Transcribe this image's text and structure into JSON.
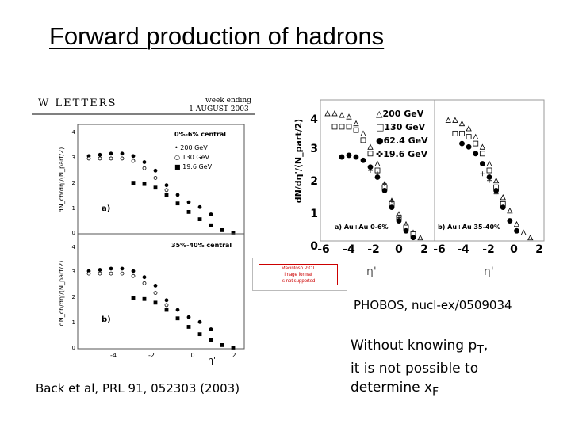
{
  "title": "Forward production of hadrons",
  "left_figure": {
    "header_left": "W LETTERS",
    "header_right_1": "week ending",
    "header_right_2": "1 AUGUST 2003",
    "top_panel": {
      "centrality": "0%-6% central",
      "legend": [
        "• 200 GeV",
        "○ 130 GeV",
        "■ 19.6 GeV"
      ],
      "label": "a)",
      "ylabel": "dN_ch/dη'/(N_part/2)",
      "yticks": [
        "0",
        "1",
        "2",
        "3",
        "4"
      ]
    },
    "bottom_panel": {
      "centrality": "35%-40% central",
      "label": "b)",
      "ylabel": "dN_ch/dη'/(N_part/2)",
      "yticks": [
        "0",
        "1",
        "2",
        "3",
        "4"
      ],
      "xticks": [
        "-4",
        "-2",
        "0",
        "2"
      ],
      "xlabel": "η'"
    },
    "caption": "Back et al, PRL 91, 052303 (2003)"
  },
  "right_figure": {
    "ylabel": "dN/dη'/⟨N_part/2⟩",
    "yticks": [
      "0",
      "1",
      "2",
      "3",
      "4"
    ],
    "legend": [
      "△200 GeV",
      "□130 GeV",
      "●62.4 GeV",
      "✜19.6 GeV"
    ],
    "panel_a": "a) Au+Au 0-6%",
    "panel_b": "b) Au+Au 35-40%",
    "xticks_a": [
      "-6",
      "-4",
      "-2",
      "0",
      "2"
    ],
    "xticks_b": [
      "-6",
      "-4",
      "-2",
      "0",
      "2"
    ],
    "xlabel": "η'",
    "caption": "PHOBOS, nucl-ex/0509034"
  },
  "pict_placeholder": [
    "Macintosh PICT",
    "image format",
    "is not supported"
  ],
  "body_text": {
    "line1_pre": "Without knowing p",
    "line1_sub": "T",
    "line1_post": ",",
    "line2": "it is not possible to",
    "line3_pre": "determine x",
    "line3_sub": "F"
  },
  "chart_data": [
    {
      "type": "scatter",
      "panel": "left-top",
      "series": [
        {
          "name": "200 GeV",
          "x": [
            -4.5,
            -4,
            -3.5,
            -3,
            -2.5,
            -2,
            -1.5,
            -1,
            -0.5,
            0,
            0.5,
            1
          ],
          "y": [
            3.2,
            3.25,
            3.3,
            3.3,
            3.2,
            2.95,
            2.6,
            2.0,
            1.6,
            1.3,
            1.1,
            0.8
          ]
        },
        {
          "name": "130 GeV",
          "x": [
            -4.5,
            -4,
            -3.5,
            -3,
            -2.5,
            -2,
            -1.5,
            -1
          ],
          "y": [
            3.1,
            3.1,
            3.1,
            3.1,
            3.0,
            2.7,
            2.3,
            1.8
          ]
        },
        {
          "name": "19.6 GeV",
          "x": [
            -2.5,
            -2,
            -1.5,
            -1,
            -0.5,
            0,
            0.5,
            1,
            1.5,
            2
          ],
          "y": [
            2.1,
            2.05,
            1.9,
            1.6,
            1.25,
            0.9,
            0.6,
            0.35,
            0.15,
            0.05
          ]
        }
      ],
      "ylim": [
        0,
        4.5
      ],
      "xlim": [
        -5,
        2.5
      ]
    },
    {
      "type": "scatter",
      "panel": "right-a",
      "series": [
        {
          "name": "200 GeV",
          "x": [
            -5.5,
            -5,
            -4.5,
            -4,
            -3.5,
            -3,
            -2.5,
            -2,
            -1.5,
            -1,
            -0.5,
            0,
            0.5,
            1
          ],
          "y": [
            3.8,
            3.8,
            3.75,
            3.7,
            3.5,
            3.2,
            2.8,
            2.3,
            1.7,
            1.2,
            0.8,
            0.5,
            0.25,
            0.1
          ]
        },
        {
          "name": "130 GeV",
          "x": [
            -5,
            -4.5,
            -4,
            -3.5,
            -3,
            -2.5,
            -2,
            -1.5,
            -1,
            -0.5,
            0,
            0.5
          ],
          "y": [
            3.4,
            3.4,
            3.4,
            3.3,
            3.0,
            2.6,
            2.1,
            1.6,
            1.1,
            0.7,
            0.4,
            0.2
          ]
        },
        {
          "name": "62.4 GeV",
          "x": [
            -4.5,
            -4,
            -3.5,
            -3,
            -2.5,
            -2,
            -1.5,
            -1,
            -0.5,
            0,
            0.5
          ],
          "y": [
            2.5,
            2.55,
            2.5,
            2.4,
            2.2,
            1.9,
            1.5,
            1.0,
            0.6,
            0.3,
            0.1
          ]
        },
        {
          "name": "19.6 GeV",
          "x": [
            -2.5,
            -2,
            -1.5,
            -1,
            -0.5,
            0
          ],
          "y": [
            2.1,
            2.0,
            1.7,
            1.2,
            0.7,
            0.3
          ]
        }
      ],
      "ylim": [
        0,
        4.2
      ],
      "xlim": [
        -6,
        2
      ]
    },
    {
      "type": "scatter",
      "panel": "right-b",
      "series": [
        {
          "name": "200 GeV",
          "x": [
            -5,
            -4.5,
            -4,
            -3.5,
            -3,
            -2.5,
            -2,
            -1.5,
            -1,
            -0.5,
            0,
            0.5,
            1
          ],
          "y": [
            3.6,
            3.6,
            3.5,
            3.35,
            3.1,
            2.8,
            2.3,
            1.8,
            1.3,
            0.9,
            0.5,
            0.25,
            0.1
          ]
        },
        {
          "name": "130 GeV",
          "x": [
            -4.5,
            -4,
            -3.5,
            -3,
            -2.5,
            -2,
            -1.5,
            -1
          ],
          "y": [
            3.2,
            3.2,
            3.1,
            2.9,
            2.6,
            2.1,
            1.6,
            1.1
          ]
        },
        {
          "name": "62.4 GeV",
          "x": [
            -4,
            -3.5,
            -3,
            -2.5,
            -2,
            -1.5,
            -1,
            -0.5,
            0
          ],
          "y": [
            2.9,
            2.8,
            2.6,
            2.3,
            1.9,
            1.5,
            1.0,
            0.6,
            0.3
          ]
        },
        {
          "name": "19.6 GeV",
          "x": [
            -2.5,
            -2,
            -1.5,
            -1
          ],
          "y": [
            2.0,
            1.8,
            1.4,
            1.0
          ]
        }
      ],
      "ylim": [
        0,
        4.2
      ],
      "xlim": [
        -6,
        2
      ]
    }
  ]
}
